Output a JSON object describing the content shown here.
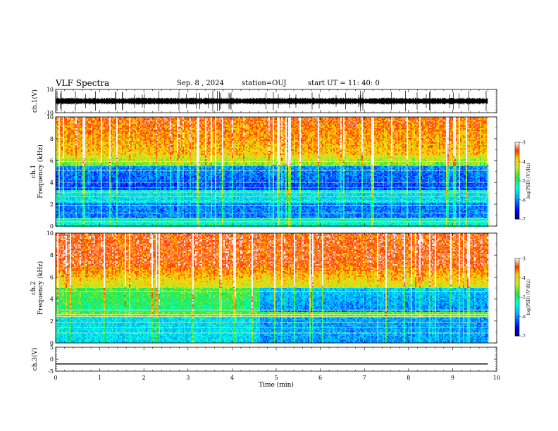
{
  "header": {
    "title": "VLF Spectra",
    "date": "Sep. 8 , 2024",
    "station": "station=OUJ",
    "start": "start UT = 11: 40: 0"
  },
  "chart_data": [
    {
      "type": "line",
      "id": "ch1-waveform",
      "ylabel": "ch.1(V)",
      "xlim": [
        0,
        10
      ],
      "ylim": [
        -10,
        10
      ],
      "yticks": [
        10,
        -10
      ],
      "description_series": [
        {
          "x": [
            0,
            9.8
          ],
          "y": [
            0,
            0
          ]
        }
      ]
    },
    {
      "type": "heatmap",
      "id": "ch1-spectrogram",
      "ylabel": "ch.1 Frequency (kHz)",
      "xlim": [
        0,
        10
      ],
      "ylim": [
        0,
        10
      ],
      "yticks": [
        0,
        2,
        4,
        6,
        8,
        10
      ],
      "data_end_x": 9.8,
      "colorbar": {
        "label": "log(PSD) (V²/Hz)",
        "range": [
          -7,
          -3
        ],
        "ticks": [
          -3,
          -4,
          -5,
          -6,
          -7
        ]
      }
    },
    {
      "type": "heatmap",
      "id": "ch2-spectrogram",
      "ylabel": "ch.2 Frequency (kHz)",
      "xlim": [
        0,
        10
      ],
      "ylim": [
        0,
        10
      ],
      "yticks": [
        0,
        2,
        4,
        6,
        8,
        10
      ],
      "data_end_x": 9.8,
      "colorbar": {
        "label": "log(PSD) (V²/Hz)",
        "range": [
          -7,
          -3
        ],
        "ticks": [
          -3,
          -4,
          -5,
          -6,
          -7
        ]
      }
    },
    {
      "type": "line",
      "id": "ch3-waveform",
      "ylabel": "ch.3(V)",
      "xlim": [
        0,
        10
      ],
      "ylim": [
        -5,
        5
      ],
      "yticks": [
        5,
        0,
        -5
      ],
      "series": [
        {
          "x": [
            0,
            9.8
          ],
          "y": [
            -2,
            -2
          ]
        }
      ]
    }
  ],
  "xaxis": {
    "label": "Time (min)",
    "ticks": [
      0,
      1,
      2,
      3,
      4,
      5,
      6,
      7,
      8,
      9,
      10
    ]
  },
  "colors": {
    "frame": "#000000",
    "trace": "#000000"
  }
}
